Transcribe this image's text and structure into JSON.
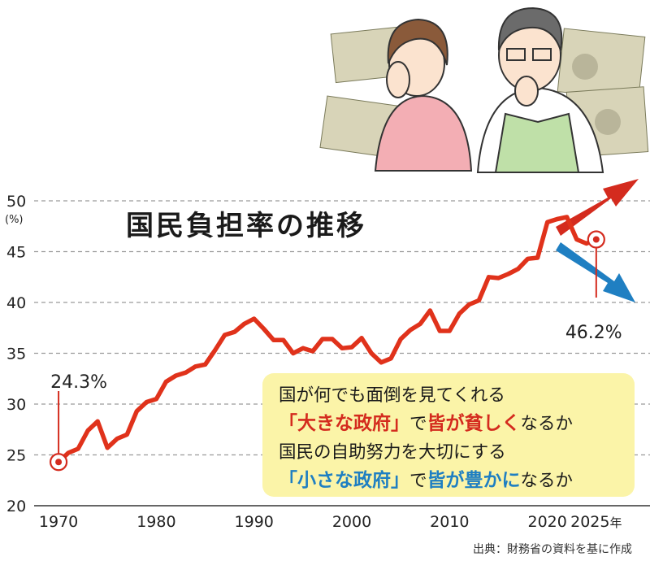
{
  "chart_data": {
    "type": "line",
    "title": "国民負担率の推移",
    "ylabel_unit": "(%)",
    "yticks": [
      20,
      25,
      30,
      35,
      40,
      45,
      50
    ],
    "xticks": [
      "1970",
      "1980",
      "1990",
      "2000",
      "2010",
      "2020"
    ],
    "xtick_last": "2025",
    "xtick_last_suffix": "年",
    "ylim": [
      20,
      50
    ],
    "xlim": [
      1967.5,
      2030.5
    ],
    "grid": "horizontal dashed",
    "series": [
      {
        "color": "#e0321b",
        "points": [
          [
            1970,
            24.3
          ],
          [
            1971,
            25.2
          ],
          [
            1972,
            25.6
          ],
          [
            1973,
            27.4
          ],
          [
            1974,
            28.3
          ],
          [
            1975,
            25.7
          ],
          [
            1976,
            26.6
          ],
          [
            1977,
            27.0
          ],
          [
            1978,
            29.3
          ],
          [
            1979,
            30.2
          ],
          [
            1980,
            30.5
          ],
          [
            1981,
            32.2
          ],
          [
            1982,
            32.8
          ],
          [
            1983,
            33.1
          ],
          [
            1984,
            33.7
          ],
          [
            1985,
            33.9
          ],
          [
            1986,
            35.3
          ],
          [
            1987,
            36.8
          ],
          [
            1988,
            37.1
          ],
          [
            1989,
            37.9
          ],
          [
            1990,
            38.4
          ],
          [
            1991,
            37.4
          ],
          [
            1992,
            36.3
          ],
          [
            1993,
            36.3
          ],
          [
            1994,
            35.0
          ],
          [
            1995,
            35.5
          ],
          [
            1996,
            35.2
          ],
          [
            1997,
            36.4
          ],
          [
            1998,
            36.4
          ],
          [
            1999,
            35.5
          ],
          [
            2000,
            35.6
          ],
          [
            2001,
            36.5
          ],
          [
            2002,
            35.0
          ],
          [
            2003,
            34.1
          ],
          [
            2004,
            34.5
          ],
          [
            2005,
            36.4
          ],
          [
            2006,
            37.3
          ],
          [
            2007,
            37.9
          ],
          [
            2008,
            39.2
          ],
          [
            2009,
            37.2
          ],
          [
            2010,
            37.2
          ],
          [
            2011,
            38.9
          ],
          [
            2012,
            39.8
          ],
          [
            2013,
            40.2
          ],
          [
            2014,
            42.5
          ],
          [
            2015,
            42.4
          ],
          [
            2016,
            42.8
          ],
          [
            2017,
            43.3
          ],
          [
            2018,
            44.3
          ],
          [
            2019,
            44.4
          ],
          [
            2020,
            47.9
          ],
          [
            2021,
            48.2
          ],
          [
            2022,
            48.4
          ],
          [
            2023,
            46.2
          ],
          [
            2024,
            45.8
          ],
          [
            2025,
            46.2
          ]
        ]
      }
    ],
    "annotations": [
      {
        "label": "24.3%",
        "x": 1970,
        "y": 24.3
      },
      {
        "label": "46.2%",
        "x": 2025,
        "y": 46.2
      }
    ]
  },
  "note": {
    "line1": "国が何でも面倒を見てくれる",
    "line2_a": "「大きな政府」",
    "line2_b": "で",
    "line2_c": "皆が貧しく",
    "line2_d": "なるか",
    "line3": "国民の自助努力を大切にする",
    "line4_a": "「小さな政府」",
    "line4_b": "で",
    "line4_c": "皆が豊かに",
    "line4_d": "なるか"
  },
  "source": "出典：財務省の資料を基に作成",
  "colors": {
    "line": "#e0321b",
    "arrow_up": "#d42b1e",
    "arrow_down": "#1f7fc2",
    "note_bg": "#fbf4a8"
  },
  "illustration": {
    "icon": "worried-couple-with-banknotes"
  }
}
